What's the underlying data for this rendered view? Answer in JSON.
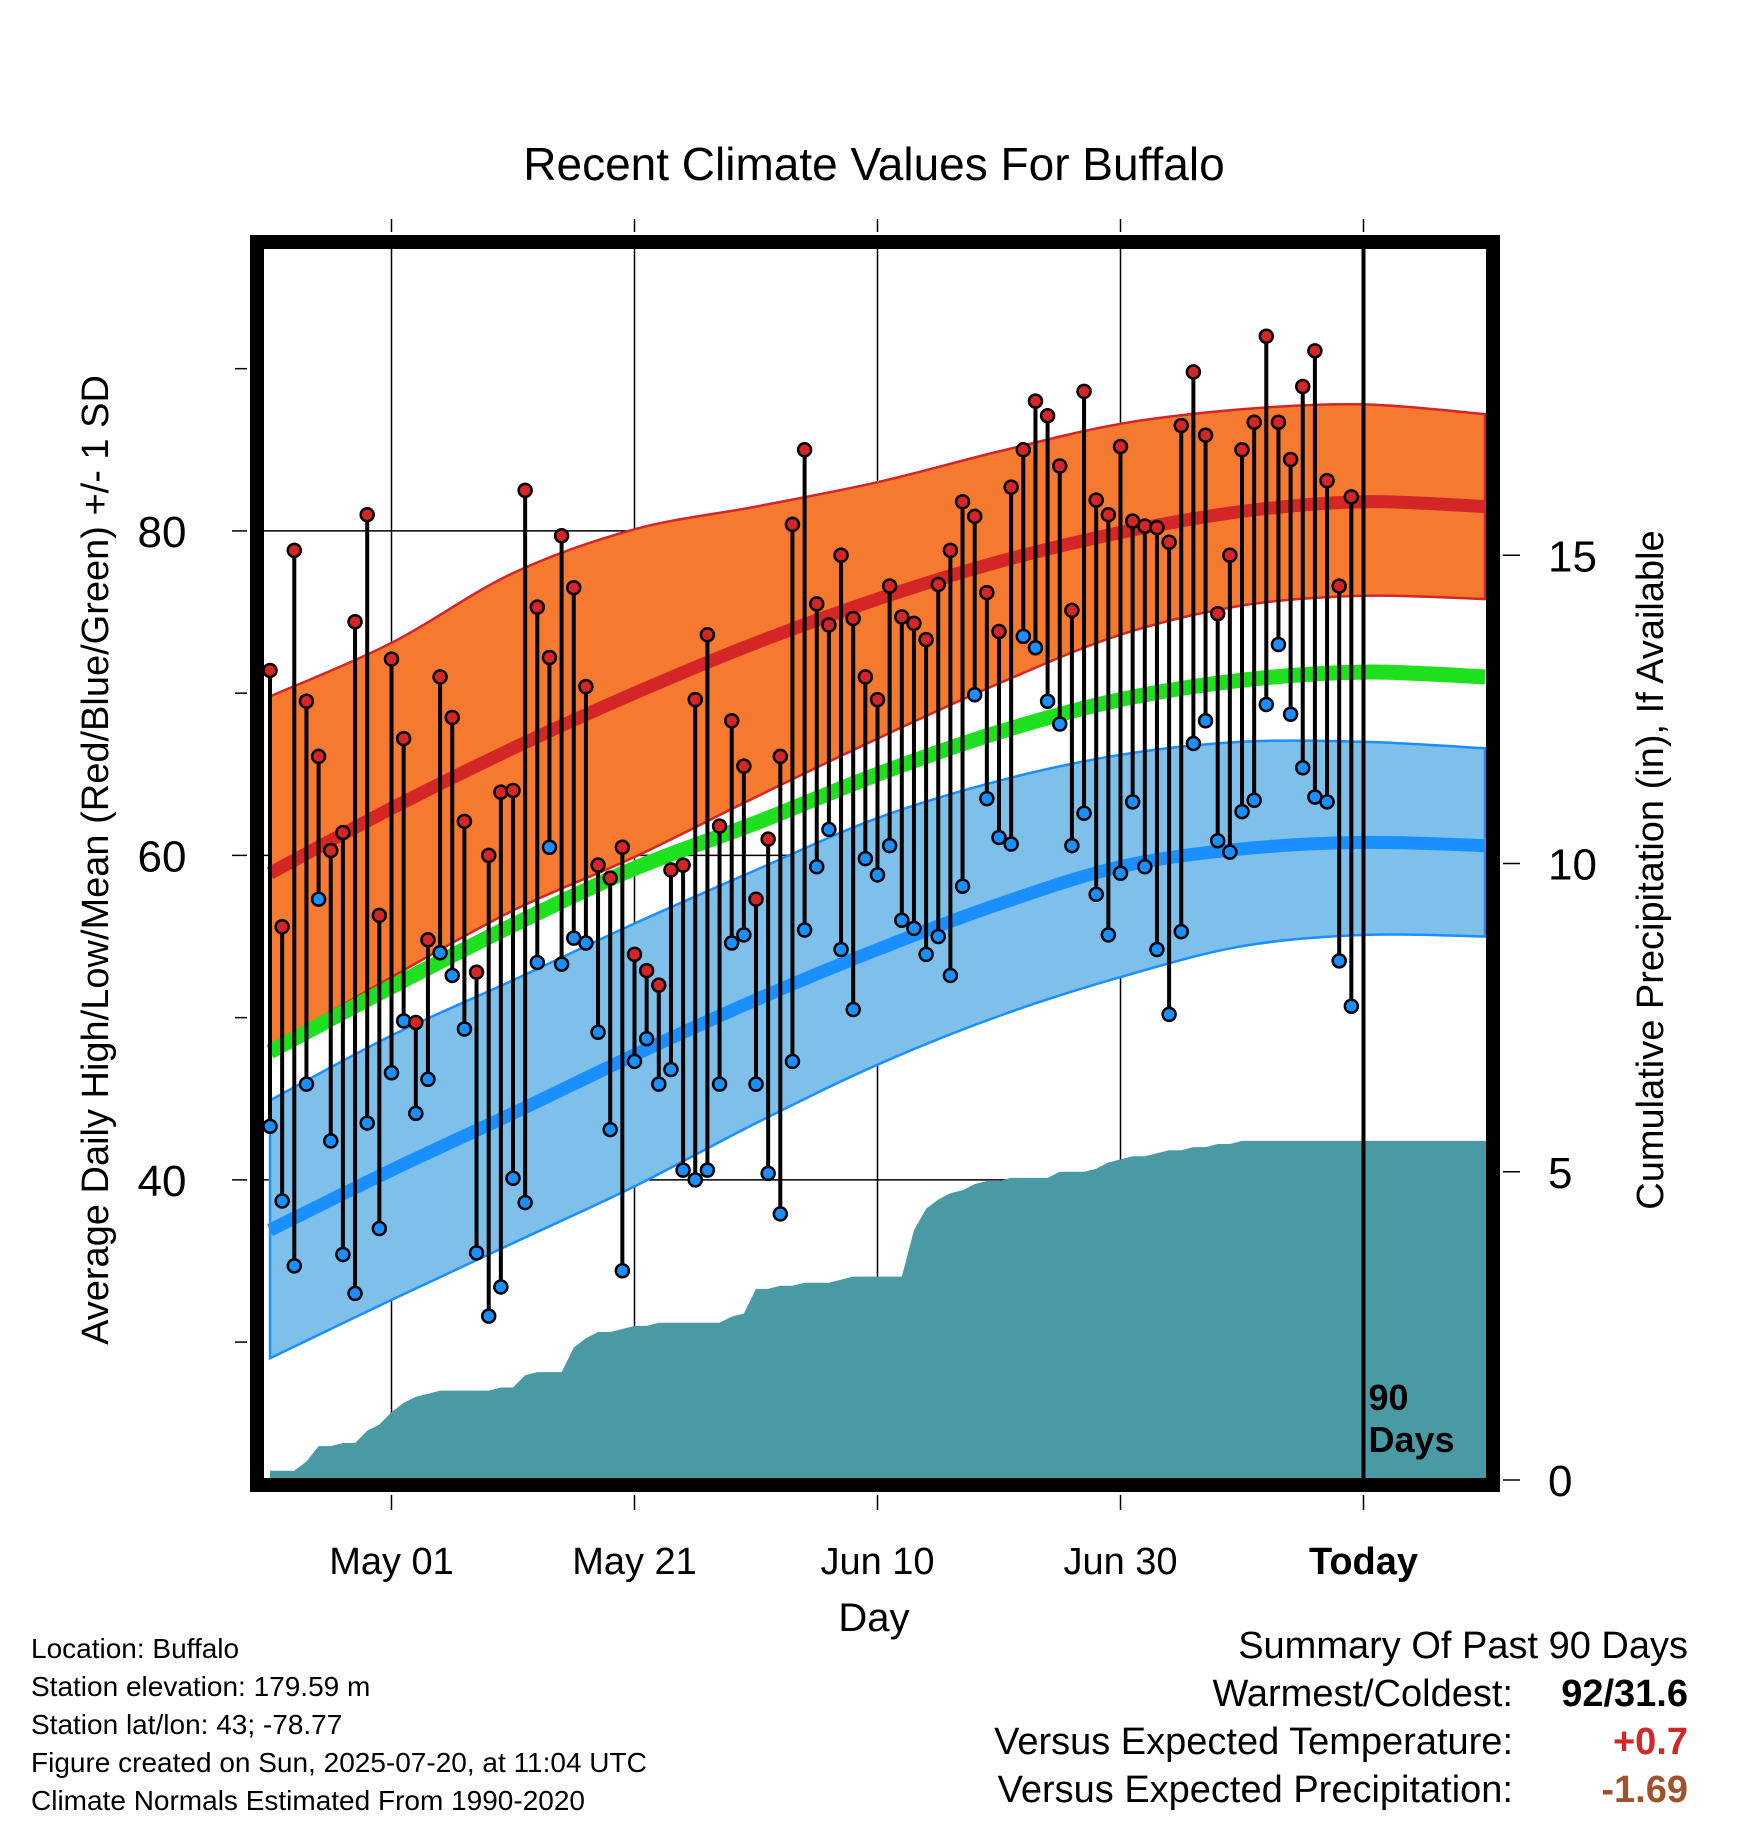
{
  "chart_data": {
    "type": "line",
    "title": "Recent Climate Values For Buffalo",
    "xlabel": "Day",
    "ylabel": "Average Daily High/Low/Mean (Red/Blue/Green) +/- 1 SD",
    "y2label": "Cumulative Precipitation (in), If Available",
    "ylim": [
      21.5,
      97.5
    ],
    "y_ticks": [
      40,
      60,
      80
    ],
    "y_minor_ticks": [
      30,
      50,
      70,
      90
    ],
    "y2lim": [
      0,
      20
    ],
    "y2_ticks": [
      0,
      5,
      10,
      15
    ],
    "x_axis": {
      "days_shown": 90,
      "tick_labels": [
        "May 01",
        "May 21",
        "Jun 10",
        "Jun 30",
        "Today"
      ]
    },
    "today_marker_label": [
      "90",
      "Days"
    ],
    "grid": true,
    "colors": {
      "high": "#d42626",
      "high_band": "#f57a30",
      "low": "#1a8fff",
      "low_band": "#7ec0ea",
      "mean": "#1fe01f",
      "precip": "#4a9aa5"
    },
    "normals": {
      "x": [
        "Apr 21",
        "May 01",
        "May 11",
        "May 21",
        "May 31",
        "Jun 10",
        "Jun 20",
        "Jun 30",
        "Jul 10",
        "Jul 20",
        "Jul 29"
      ],
      "high_mean": [
        58.9,
        62.9,
        66.6,
        70.0,
        73.1,
        75.8,
        78.1,
        79.9,
        81.2,
        81.8,
        81.5
      ],
      "high_upper": [
        69.8,
        73.1,
        77.4,
        80.1,
        81.5,
        83.0,
        84.9,
        86.6,
        87.5,
        87.8,
        87.2
      ],
      "high_lower": [
        48.2,
        52.5,
        56.6,
        59.9,
        63.6,
        67.2,
        70.6,
        73.6,
        75.4,
        76.0,
        75.8
      ],
      "mean": [
        47.9,
        51.9,
        55.7,
        59.2,
        62.0,
        65.0,
        67.6,
        69.6,
        70.8,
        71.3,
        71.0
      ],
      "low_mean": [
        36.9,
        40.6,
        44.1,
        47.7,
        51.1,
        54.2,
        57.0,
        59.3,
        60.4,
        60.8,
        60.6
      ],
      "low_upper": [
        44.9,
        48.9,
        52.3,
        55.8,
        59.1,
        62.3,
        64.6,
        66.2,
        67.0,
        67.0,
        66.6
      ],
      "low_lower": [
        29.0,
        32.6,
        36.1,
        39.6,
        43.5,
        47.1,
        50.1,
        52.5,
        54.4,
        55.1,
        55.0
      ]
    },
    "daily_high": [
      71.4,
      55.6,
      78.8,
      69.5,
      66.1,
      60.3,
      61.4,
      74.4,
      81.0,
      56.3,
      72.1,
      67.2,
      49.7,
      54.8,
      71.0,
      68.5,
      62.1,
      52.8,
      60.0,
      63.9,
      64.0,
      82.5,
      75.3,
      72.2,
      79.7,
      76.5,
      70.4,
      59.4,
      58.6,
      60.5,
      53.9,
      52.9,
      52.0,
      59.1,
      59.4,
      69.6,
      73.6,
      61.8,
      68.3,
      65.5,
      57.3,
      61.0,
      66.1,
      80.4,
      85.0,
      75.5,
      74.2,
      78.5,
      74.6,
      71.0,
      69.6,
      76.6,
      74.7,
      74.3,
      73.3,
      76.7,
      78.8,
      81.8,
      80.9,
      76.2,
      73.8,
      82.7,
      85.0,
      88.0,
      87.1,
      84.0,
      75.1,
      88.6,
      81.9,
      81.0,
      85.2,
      80.6,
      80.3,
      80.2,
      79.3,
      86.5,
      89.8,
      85.9,
      74.9,
      78.5,
      85.0,
      86.7,
      92.0,
      86.7,
      84.4,
      88.9,
      91.1,
      83.1,
      76.6,
      82.1
    ],
    "daily_low": [
      43.3,
      38.7,
      34.7,
      45.9,
      57.3,
      42.4,
      35.4,
      33.0,
      43.5,
      37.0,
      46.6,
      49.8,
      44.1,
      46.2,
      54.0,
      52.6,
      49.3,
      35.5,
      31.6,
      33.4,
      40.1,
      38.6,
      53.4,
      60.5,
      53.3,
      54.9,
      54.6,
      49.1,
      43.1,
      34.4,
      47.3,
      48.7,
      45.9,
      46.8,
      40.6,
      40.0,
      40.6,
      45.9,
      54.6,
      55.1,
      45.9,
      40.4,
      37.9,
      47.3,
      55.4,
      59.3,
      61.6,
      54.2,
      50.5,
      59.8,
      58.8,
      60.6,
      56.0,
      55.5,
      53.9,
      55.0,
      52.6,
      58.1,
      69.9,
      63.5,
      61.1,
      60.7,
      73.5,
      72.8,
      69.5,
      68.1,
      60.6,
      62.6,
      57.6,
      55.1,
      58.9,
      63.3,
      59.3,
      54.2,
      50.2,
      55.3,
      66.9,
      68.3,
      60.9,
      60.2,
      62.7,
      63.4,
      69.3,
      73.0,
      68.7,
      65.4,
      63.6,
      63.3,
      53.5,
      50.7
    ],
    "cumulative_precip": [
      0.15,
      0.15,
      0.15,
      0.3,
      0.55,
      0.55,
      0.6,
      0.6,
      0.8,
      0.9,
      1.1,
      1.25,
      1.35,
      1.4,
      1.45,
      1.45,
      1.45,
      1.45,
      1.45,
      1.5,
      1.5,
      1.7,
      1.75,
      1.75,
      1.75,
      2.15,
      2.3,
      2.4,
      2.4,
      2.45,
      2.5,
      2.5,
      2.55,
      2.55,
      2.55,
      2.55,
      2.55,
      2.55,
      2.65,
      2.7,
      3.1,
      3.1,
      3.15,
      3.15,
      3.2,
      3.2,
      3.2,
      3.25,
      3.3,
      3.3,
      3.3,
      3.3,
      3.3,
      4.05,
      4.4,
      4.55,
      4.65,
      4.7,
      4.8,
      4.85,
      4.85,
      4.9,
      4.9,
      4.9,
      4.9,
      5.0,
      5.0,
      5.0,
      5.05,
      5.15,
      5.2,
      5.25,
      5.25,
      5.3,
      5.35,
      5.35,
      5.4,
      5.4,
      5.45,
      5.45,
      5.5,
      5.5,
      5.5,
      5.5,
      5.5,
      5.5,
      5.5,
      5.5,
      5.5,
      5.5
    ]
  },
  "location": {
    "location_line": "Location: Buffalo",
    "elevation_line": "Station elevation: 179.59 m",
    "latlon_line": "Station lat/lon: 43; -78.77",
    "created_line": "Figure created on Sun, 2025-07-20, at 11:04 UTC",
    "normals_line": "Climate Normals Estimated From 1990-2020"
  },
  "summary": {
    "title": "Summary Of Past 90 Days",
    "warm_cold_label": "Warmest/Coldest:",
    "warm_cold_value": "92/31.6",
    "temp_label": "Versus Expected Temperature:",
    "temp_value": "+0.7",
    "temp_color": "#d42626",
    "precip_label": "Versus Expected Precipitation:",
    "precip_value": "-1.69",
    "precip_color": "#a0522d"
  }
}
